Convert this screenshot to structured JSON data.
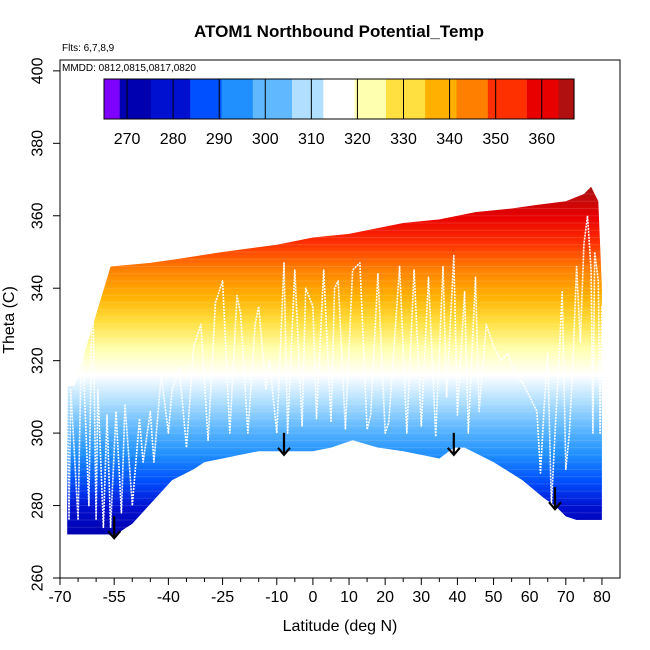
{
  "chart_data": {
    "type": "heatmap",
    "title": "ATOM1 Northbound Potential_Temp",
    "annotations": [
      "Flts: 6,7,8,9",
      "MMDD: 0812,0815,0817,0820"
    ],
    "xlabel": "Latitude (deg N)",
    "ylabel": "Theta (C)",
    "xlim": [
      -70,
      85
    ],
    "ylim": [
      260,
      403
    ],
    "x_ticks_major": [
      -70,
      -55,
      -40,
      -25,
      -10,
      0,
      10,
      20,
      30,
      40,
      50,
      60,
      70,
      80
    ],
    "x_tick_labels": [
      "-70",
      "-55",
      "-40",
      "-25",
      "-10",
      "0",
      "10",
      "20",
      "30",
      "40",
      "50",
      "60",
      "70",
      "80"
    ],
    "x_ticks_minor": [
      -65,
      -60,
      -50,
      -45,
      -35,
      -30,
      -20,
      -15,
      -5,
      5,
      15,
      25,
      35,
      45,
      55,
      65,
      75
    ],
    "y_ticks": [
      260,
      280,
      300,
      320,
      340,
      360,
      380,
      400
    ],
    "y_tick_labels": [
      "260",
      "280",
      "300",
      "320",
      "340",
      "360",
      "380",
      "400"
    ],
    "colorbar": {
      "min": 265,
      "max": 367,
      "ticks": [
        270,
        280,
        290,
        300,
        310,
        320,
        330,
        340,
        350,
        360
      ],
      "tick_labels": [
        "270",
        "280",
        "290",
        "300",
        "310",
        "320",
        "330",
        "340",
        "350",
        "360"
      ],
      "palette": [
        "#8000ff",
        "#0000b0",
        "#0010d0",
        "#0050ff",
        "#2090ff",
        "#60b8ff",
        "#b0dfff",
        "#ffffff",
        "#ffffb0",
        "#ffe040",
        "#ffb000",
        "#ff8000",
        "#ff3000",
        "#e80000",
        "#b01010"
      ]
    },
    "coverage_bottom": {
      "lat": [
        -68,
        -56.5,
        -55,
        -53,
        -50,
        -39,
        -33,
        -30,
        -25,
        -20,
        -15,
        -10,
        -5,
        0,
        5,
        11,
        18,
        25,
        35,
        39,
        42,
        50,
        58,
        64,
        67,
        70,
        73,
        76,
        78,
        80
      ],
      "theta": [
        272,
        272,
        271,
        273,
        275,
        287,
        290,
        292,
        293,
        294,
        295,
        295,
        295,
        295,
        296,
        298,
        296,
        295,
        293,
        296,
        296,
        292,
        287,
        282,
        280,
        277,
        276,
        276,
        276,
        276
      ]
    },
    "coverage_top": {
      "lat": [
        -68,
        -66,
        -56,
        -45,
        -38,
        -25,
        -10,
        0,
        10,
        20,
        25,
        35,
        45,
        55,
        62,
        70,
        75,
        77,
        79,
        80
      ],
      "theta": [
        313,
        313,
        346,
        347,
        348,
        350,
        352,
        354,
        355,
        357,
        358,
        359,
        361,
        362,
        363,
        364,
        366,
        368,
        364,
        340
      ]
    },
    "arrows": [
      {
        "lat": -55,
        "theta": 271
      },
      {
        "lat": -8,
        "theta": 294
      },
      {
        "lat": 39,
        "theta": 294
      },
      {
        "lat": 67,
        "theta": 279
      }
    ],
    "flight_profiles": {
      "description": "white sampled aircraft profiles",
      "path": [
        [
          -68,
          314
        ],
        [
          -67.5,
          276
        ],
        [
          -67,
          312
        ],
        [
          -65,
          276
        ],
        [
          -64,
          330
        ],
        [
          -62,
          280
        ],
        [
          -61,
          346
        ],
        [
          -60,
          276
        ],
        [
          -59.5,
          312
        ],
        [
          -58,
          274
        ],
        [
          -57,
          305
        ],
        [
          -56,
          274
        ],
        [
          -54.5,
          306
        ],
        [
          -53,
          278
        ],
        [
          -52,
          308
        ],
        [
          -50,
          280
        ],
        [
          -48,
          304
        ],
        [
          -47,
          292
        ],
        [
          -45,
          306
        ],
        [
          -44,
          292
        ],
        [
          -42,
          316
        ],
        [
          -40,
          300
        ],
        [
          -39,
          312
        ],
        [
          -37,
          318
        ],
        [
          -35,
          296
        ],
        [
          -33,
          324
        ],
        [
          -31,
          330
        ],
        [
          -29,
          298
        ],
        [
          -27,
          336
        ],
        [
          -25,
          342
        ],
        [
          -23,
          300
        ],
        [
          -21,
          338
        ],
        [
          -20,
          333
        ],
        [
          -18,
          300
        ],
        [
          -16,
          330
        ],
        [
          -15,
          335
        ],
        [
          -13,
          312
        ],
        [
          -12,
          320
        ],
        [
          -10,
          300
        ],
        [
          -8,
          347
        ],
        [
          -7,
          300
        ],
        [
          -5,
          345
        ],
        [
          -3,
          302
        ],
        [
          -2,
          340
        ],
        [
          0,
          335
        ],
        [
          1,
          304
        ],
        [
          3,
          345
        ],
        [
          5,
          303
        ],
        [
          6,
          340
        ],
        [
          7,
          342
        ],
        [
          9,
          301
        ],
        [
          11,
          345
        ],
        [
          13,
          347
        ],
        [
          15,
          301
        ],
        [
          16,
          305
        ],
        [
          18,
          344
        ],
        [
          20,
          300
        ],
        [
          21,
          303
        ],
        [
          24,
          346
        ],
        [
          26,
          300
        ],
        [
          28,
          345
        ],
        [
          30,
          302
        ],
        [
          32,
          343
        ],
        [
          34,
          299
        ],
        [
          36,
          346
        ],
        [
          37,
          310
        ],
        [
          39,
          349
        ],
        [
          40,
          305
        ],
        [
          42,
          339
        ],
        [
          43,
          300
        ],
        [
          45,
          343
        ],
        [
          46,
          306
        ],
        [
          48,
          330
        ],
        [
          50,
          324
        ],
        [
          52,
          320
        ],
        [
          54,
          322
        ],
        [
          56,
          316
        ],
        [
          58,
          314
        ],
        [
          60,
          310
        ],
        [
          62,
          306
        ],
        [
          63,
          289
        ],
        [
          64,
          307
        ],
        [
          65,
          322
        ],
        [
          66,
          280
        ],
        [
          67,
          300
        ],
        [
          68,
          318
        ],
        [
          69,
          339
        ],
        [
          70,
          290
        ],
        [
          71,
          300
        ],
        [
          72,
          320
        ],
        [
          73,
          346
        ],
        [
          74,
          325
        ],
        [
          75,
          352
        ],
        [
          76,
          360
        ],
        [
          77,
          345
        ],
        [
          77.5,
          300
        ],
        [
          78,
          350
        ],
        [
          79,
          342
        ],
        [
          79.5,
          300
        ],
        [
          80,
          335
        ]
      ]
    }
  }
}
